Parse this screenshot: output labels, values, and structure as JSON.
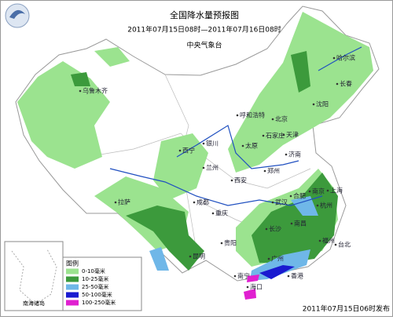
{
  "header": {
    "title": "全国降水量预报图",
    "period": "2011年07月15日08时—2011年07月16日08时",
    "agency": "中央气象台"
  },
  "map": {
    "cities": [
      "乌鲁木齐",
      "哈尔滨",
      "长春",
      "沈阳",
      "呼和浩特",
      "北京",
      "天津",
      "石家庄",
      "太原",
      "银川",
      "西宁",
      "兰州",
      "济南",
      "郑州",
      "西安",
      "合肥",
      "南京",
      "上海",
      "杭州",
      "武汉",
      "成都",
      "重庆",
      "长沙",
      "南昌",
      "福州",
      "贵阳",
      "昆明",
      "拉萨",
      "南宁",
      "广州",
      "香港",
      "台北",
      "海口"
    ],
    "inset_label": "南海诸岛"
  },
  "legend": {
    "title": "图例",
    "items": [
      {
        "label": "0-10毫米",
        "color": "#9be38f"
      },
      {
        "label": "10-25毫米",
        "color": "#3c9a3c"
      },
      {
        "label": "25-50毫米",
        "color": "#6fb7e8"
      },
      {
        "label": "50-100毫米",
        "color": "#1a1ad0"
      },
      {
        "label": "100-250毫米",
        "color": "#e020d0"
      }
    ]
  },
  "footer": {
    "issued": "2011年07月15日06时发布"
  }
}
